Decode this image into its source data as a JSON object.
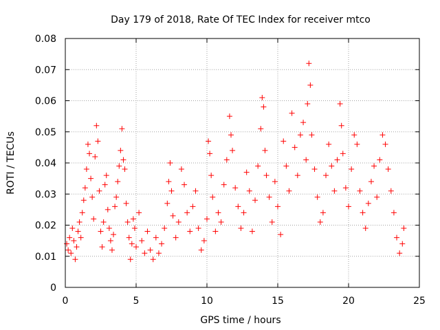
{
  "chart_data": {
    "type": "scatter",
    "title": "Day 179 of 2018, Rate Of TEC Index for receiver mtco",
    "xlabel": "GPS time / hours",
    "ylabel": "ROTI / TECUs",
    "xlim": [
      0,
      25
    ],
    "ylim": [
      0,
      0.08
    ],
    "x_ticks": [
      0,
      5,
      10,
      15,
      20,
      25
    ],
    "y_ticks": [
      0,
      0.01,
      0.02,
      0.03,
      0.04,
      0.05,
      0.06,
      0.07,
      0.08
    ],
    "grid": true,
    "marker": "+",
    "color": "#ff0000",
    "series": [
      {
        "points": [
          [
            0.1,
            0.014
          ],
          [
            0.2,
            0.012
          ],
          [
            0.3,
            0.016
          ],
          [
            0.4,
            0.011
          ],
          [
            0.5,
            0.019
          ],
          [
            0.6,
            0.015
          ],
          [
            0.7,
            0.009
          ],
          [
            0.8,
            0.013
          ],
          [
            0.9,
            0.018
          ],
          [
            1.0,
            0.021
          ],
          [
            1.1,
            0.016
          ],
          [
            1.2,
            0.024
          ],
          [
            1.3,
            0.028
          ],
          [
            1.4,
            0.032
          ],
          [
            1.5,
            0.038
          ],
          [
            1.6,
            0.046
          ],
          [
            1.7,
            0.043
          ],
          [
            1.8,
            0.035
          ],
          [
            1.9,
            0.029
          ],
          [
            2.0,
            0.022
          ],
          [
            2.1,
            0.042
          ],
          [
            2.2,
            0.052
          ],
          [
            2.3,
            0.047
          ],
          [
            2.4,
            0.031
          ],
          [
            2.5,
            0.018
          ],
          [
            2.6,
            0.013
          ],
          [
            2.7,
            0.021
          ],
          [
            2.8,
            0.033
          ],
          [
            2.9,
            0.036
          ],
          [
            3.0,
            0.025
          ],
          [
            3.1,
            0.019
          ],
          [
            3.2,
            0.015
          ],
          [
            3.3,
            0.012
          ],
          [
            3.4,
            0.017
          ],
          [
            3.5,
            0.026
          ],
          [
            3.6,
            0.029
          ],
          [
            3.7,
            0.034
          ],
          [
            3.8,
            0.039
          ],
          [
            3.9,
            0.044
          ],
          [
            4.0,
            0.051
          ],
          [
            4.1,
            0.041
          ],
          [
            4.2,
            0.038
          ],
          [
            4.3,
            0.027
          ],
          [
            4.4,
            0.021
          ],
          [
            4.5,
            0.016
          ],
          [
            4.6,
            0.009
          ],
          [
            4.7,
            0.014
          ],
          [
            4.8,
            0.022
          ],
          [
            4.9,
            0.019
          ],
          [
            5.0,
            0.013
          ],
          [
            5.2,
            0.024
          ],
          [
            5.4,
            0.015
          ],
          [
            5.6,
            0.011
          ],
          [
            5.8,
            0.018
          ],
          [
            6.0,
            0.012
          ],
          [
            6.2,
            0.009
          ],
          [
            6.4,
            0.016
          ],
          [
            6.6,
            0.011
          ],
          [
            6.8,
            0.014
          ],
          [
            7.0,
            0.019
          ],
          [
            7.2,
            0.027
          ],
          [
            7.3,
            0.034
          ],
          [
            7.4,
            0.04
          ],
          [
            7.5,
            0.031
          ],
          [
            7.6,
            0.023
          ],
          [
            7.8,
            0.016
          ],
          [
            8.0,
            0.021
          ],
          [
            8.2,
            0.038
          ],
          [
            8.4,
            0.033
          ],
          [
            8.6,
            0.024
          ],
          [
            8.8,
            0.018
          ],
          [
            9.0,
            0.026
          ],
          [
            9.2,
            0.031
          ],
          [
            9.4,
            0.019
          ],
          [
            9.6,
            0.012
          ],
          [
            9.8,
            0.015
          ],
          [
            10.0,
            0.022
          ],
          [
            10.1,
            0.047
          ],
          [
            10.2,
            0.043
          ],
          [
            10.3,
            0.036
          ],
          [
            10.4,
            0.029
          ],
          [
            10.6,
            0.018
          ],
          [
            10.8,
            0.024
          ],
          [
            11.0,
            0.021
          ],
          [
            11.2,
            0.033
          ],
          [
            11.4,
            0.041
          ],
          [
            11.6,
            0.055
          ],
          [
            11.7,
            0.049
          ],
          [
            11.8,
            0.044
          ],
          [
            12.0,
            0.032
          ],
          [
            12.2,
            0.026
          ],
          [
            12.4,
            0.019
          ],
          [
            12.6,
            0.024
          ],
          [
            12.8,
            0.037
          ],
          [
            13.0,
            0.031
          ],
          [
            13.2,
            0.018
          ],
          [
            13.4,
            0.028
          ],
          [
            13.6,
            0.039
          ],
          [
            13.8,
            0.051
          ],
          [
            13.9,
            0.061
          ],
          [
            14.0,
            0.058
          ],
          [
            14.1,
            0.044
          ],
          [
            14.2,
            0.036
          ],
          [
            14.4,
            0.029
          ],
          [
            14.6,
            0.021
          ],
          [
            14.8,
            0.034
          ],
          [
            15.0,
            0.026
          ],
          [
            15.2,
            0.017
          ],
          [
            15.4,
            0.047
          ],
          [
            15.6,
            0.039
          ],
          [
            15.8,
            0.031
          ],
          [
            16.0,
            0.056
          ],
          [
            16.2,
            0.045
          ],
          [
            16.4,
            0.036
          ],
          [
            16.6,
            0.049
          ],
          [
            16.8,
            0.053
          ],
          [
            17.0,
            0.041
          ],
          [
            17.1,
            0.059
          ],
          [
            17.2,
            0.072
          ],
          [
            17.3,
            0.065
          ],
          [
            17.4,
            0.049
          ],
          [
            17.6,
            0.038
          ],
          [
            17.8,
            0.029
          ],
          [
            18.0,
            0.021
          ],
          [
            18.2,
            0.024
          ],
          [
            18.4,
            0.036
          ],
          [
            18.6,
            0.046
          ],
          [
            18.8,
            0.039
          ],
          [
            19.0,
            0.031
          ],
          [
            19.2,
            0.041
          ],
          [
            19.4,
            0.059
          ],
          [
            19.5,
            0.052
          ],
          [
            19.6,
            0.043
          ],
          [
            19.8,
            0.032
          ],
          [
            20.0,
            0.026
          ],
          [
            20.2,
            0.038
          ],
          [
            20.4,
            0.049
          ],
          [
            20.6,
            0.046
          ],
          [
            20.8,
            0.031
          ],
          [
            21.0,
            0.024
          ],
          [
            21.2,
            0.019
          ],
          [
            21.4,
            0.027
          ],
          [
            21.6,
            0.034
          ],
          [
            21.8,
            0.039
          ],
          [
            22.0,
            0.029
          ],
          [
            22.2,
            0.041
          ],
          [
            22.4,
            0.049
          ],
          [
            22.6,
            0.046
          ],
          [
            22.8,
            0.038
          ],
          [
            23.0,
            0.031
          ],
          [
            23.2,
            0.024
          ],
          [
            23.4,
            0.016
          ],
          [
            23.6,
            0.011
          ],
          [
            23.8,
            0.014
          ],
          [
            23.9,
            0.019
          ]
        ]
      }
    ]
  }
}
